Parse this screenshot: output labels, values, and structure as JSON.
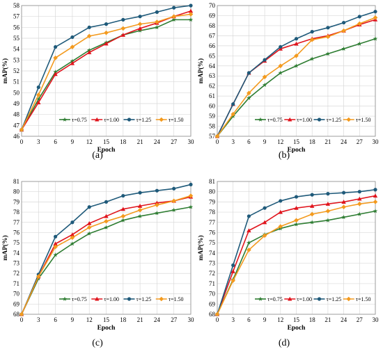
{
  "series_styles": [
    {
      "name": "τ=0.75",
      "color": "#2e7d32",
      "marker": "star"
    },
    {
      "name": "τ=1.00",
      "color": "#e0141c",
      "marker": "triangle"
    },
    {
      "name": "τ=1.25",
      "color": "#1f5a7a",
      "marker": "circle"
    },
    {
      "name": "τ=1.50",
      "color": "#f39a1e",
      "marker": "diamond"
    }
  ],
  "chart_data": [
    {
      "type": "line",
      "caption": "(a)",
      "xlabel": "Epoch",
      "ylabel": "mAP(%)",
      "xlim": [
        0,
        30
      ],
      "ylim": [
        46,
        58
      ],
      "x_ticks": [
        0,
        3,
        6,
        9,
        12,
        15,
        18,
        21,
        24,
        27,
        30
      ],
      "y_ticks": [
        46,
        47,
        48,
        49,
        50,
        51,
        52,
        53,
        54,
        55,
        56,
        57,
        58
      ],
      "grid": true,
      "legend_position": "bottom-right",
      "x": [
        0,
        3,
        6,
        9,
        12,
        15,
        18,
        21,
        24,
        27,
        30
      ],
      "series": [
        {
          "name": "τ=0.75",
          "values": [
            46.6,
            49.4,
            51.9,
            52.9,
            53.9,
            54.6,
            55.3,
            55.7,
            56.0,
            56.7,
            56.7
          ]
        },
        {
          "name": "τ=1.00",
          "values": [
            46.6,
            49.1,
            51.7,
            52.7,
            53.7,
            54.5,
            55.3,
            55.9,
            56.4,
            57.0,
            57.5
          ]
        },
        {
          "name": "τ=1.25",
          "values": [
            46.6,
            50.5,
            54.2,
            55.1,
            56.0,
            56.3,
            56.7,
            57.0,
            57.4,
            57.8,
            58.0
          ]
        },
        {
          "name": "τ=1.50",
          "values": [
            46.6,
            49.8,
            53.2,
            54.2,
            55.2,
            55.5,
            55.9,
            56.3,
            56.5,
            57.0,
            57.2
          ]
        }
      ]
    },
    {
      "type": "line",
      "caption": "(b)",
      "xlabel": "Epoch",
      "ylabel": "mAP(%)",
      "xlim": [
        0,
        30
      ],
      "ylim": [
        57,
        70
      ],
      "x_ticks": [
        0,
        3,
        6,
        9,
        12,
        15,
        18,
        21,
        24,
        27,
        30
      ],
      "y_ticks": [
        57,
        58,
        59,
        60,
        61,
        62,
        63,
        64,
        65,
        66,
        67,
        68,
        69,
        70
      ],
      "grid": true,
      "legend_position": "bottom",
      "x": [
        0,
        3,
        6,
        9,
        12,
        15,
        18,
        21,
        24,
        27,
        30
      ],
      "series": [
        {
          "name": "τ=0.75",
          "values": [
            57.0,
            59.0,
            60.8,
            62.1,
            63.3,
            64.0,
            64.7,
            65.2,
            65.7,
            66.2,
            66.7
          ]
        },
        {
          "name": "τ=1.00",
          "values": [
            57.0,
            60.2,
            63.3,
            64.5,
            65.7,
            66.2,
            66.7,
            67.0,
            67.5,
            68.1,
            68.6
          ]
        },
        {
          "name": "τ=1.25",
          "values": [
            57.0,
            60.2,
            63.3,
            64.6,
            65.9,
            66.7,
            67.4,
            67.8,
            68.3,
            68.9,
            69.4
          ]
        },
        {
          "name": "τ=1.50",
          "values": [
            57.0,
            59.2,
            61.3,
            62.9,
            64.0,
            65.0,
            66.6,
            66.9,
            67.5,
            68.2,
            68.8
          ]
        }
      ]
    },
    {
      "type": "line",
      "caption": "(c)",
      "xlabel": "Epoch",
      "ylabel": "mAP(%)",
      "xlim": [
        0,
        30
      ],
      "ylim": [
        68,
        81
      ],
      "x_ticks": [
        0,
        3,
        6,
        9,
        12,
        15,
        18,
        21,
        24,
        27,
        30
      ],
      "y_ticks": [
        68,
        69,
        70,
        71,
        72,
        73,
        74,
        75,
        76,
        77,
        78,
        79,
        80,
        81
      ],
      "grid": true,
      "legend_position": "bottom",
      "x": [
        0,
        3,
        6,
        9,
        12,
        15,
        18,
        21,
        24,
        27,
        30
      ],
      "series": [
        {
          "name": "τ=0.75",
          "values": [
            68.0,
            71.5,
            73.8,
            74.9,
            75.9,
            76.5,
            77.2,
            77.6,
            77.9,
            78.2,
            78.5
          ]
        },
        {
          "name": "τ=1.00",
          "values": [
            68.0,
            71.7,
            74.9,
            75.8,
            76.9,
            77.6,
            78.3,
            78.6,
            78.9,
            79.1,
            79.5
          ]
        },
        {
          "name": "τ=1.25",
          "values": [
            68.0,
            71.9,
            75.6,
            77.0,
            78.5,
            79.0,
            79.6,
            79.9,
            80.1,
            80.3,
            80.7
          ]
        },
        {
          "name": "τ=1.50",
          "values": [
            68.0,
            71.7,
            74.6,
            75.5,
            76.5,
            77.1,
            77.6,
            78.2,
            78.7,
            79.1,
            79.6
          ]
        }
      ]
    },
    {
      "type": "line",
      "caption": "(d)",
      "xlabel": "Epoch",
      "ylabel": "mAP(%)",
      "xlim": [
        0,
        30
      ],
      "ylim": [
        68,
        81
      ],
      "x_ticks": [
        0,
        3,
        6,
        9,
        12,
        15,
        18,
        21,
        24,
        27,
        30
      ],
      "y_ticks": [
        68,
        69,
        70,
        71,
        72,
        73,
        74,
        75,
        76,
        77,
        78,
        79,
        80,
        81
      ],
      "grid": true,
      "legend_position": "bottom",
      "x": [
        0,
        3,
        6,
        9,
        12,
        15,
        18,
        21,
        24,
        27,
        30
      ],
      "series": [
        {
          "name": "τ=0.75",
          "values": [
            68.0,
            71.4,
            75.0,
            75.8,
            76.4,
            76.8,
            77.0,
            77.2,
            77.5,
            77.8,
            78.1
          ]
        },
        {
          "name": "τ=1.00",
          "values": [
            68.0,
            72.2,
            76.2,
            77.0,
            78.0,
            78.4,
            78.6,
            78.8,
            79.0,
            79.3,
            79.6
          ]
        },
        {
          "name": "τ=1.25",
          "values": [
            68.0,
            72.8,
            77.6,
            78.4,
            79.1,
            79.5,
            79.7,
            79.8,
            79.9,
            80.0,
            80.2
          ]
        },
        {
          "name": "τ=1.50",
          "values": [
            68.0,
            71.3,
            74.3,
            75.7,
            76.6,
            77.2,
            77.8,
            78.1,
            78.5,
            78.8,
            79.0
          ]
        }
      ]
    }
  ]
}
